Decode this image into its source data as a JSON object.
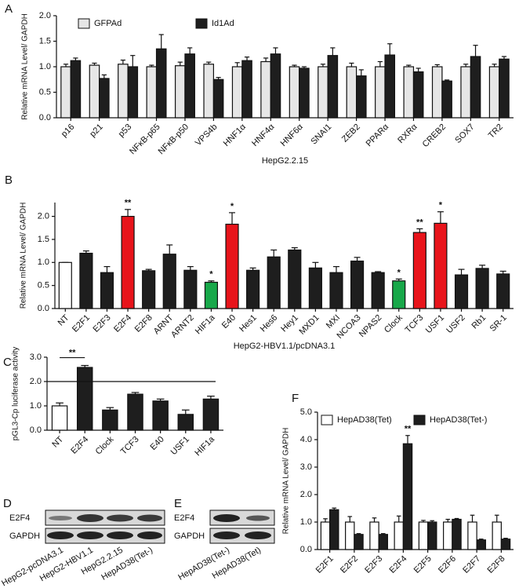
{
  "chart_data": [
    {
      "type": "bar",
      "panel": "A",
      "ylabel": "Relative mRNA Level/ GAPDH",
      "xlabel": "HepG2.2.15",
      "categories": [
        "p16",
        "p21",
        "p53",
        "NFκB-p65",
        "NFκB-p50",
        "VPS4b",
        "HNF1α",
        "HNF4α",
        "HNF6α",
        "SNAI1",
        "ZEB2",
        "PPARα",
        "RXRα",
        "CREB2",
        "SOX7",
        "TR2"
      ],
      "series": [
        {
          "name": "GFPAd",
          "color": "#e6e6e6",
          "values": [
            1.0,
            1.03,
            1.05,
            1.0,
            1.02,
            1.05,
            1.0,
            1.1,
            1.0,
            1.0,
            1.0,
            1.0,
            1.0,
            1.0,
            1.0,
            1.0
          ],
          "errors": [
            0.05,
            0.04,
            0.08,
            0.03,
            0.07,
            0.04,
            0.08,
            0.07,
            0.03,
            0.05,
            0.07,
            0.1,
            0.03,
            0.04,
            0.05,
            0.05
          ]
        },
        {
          "name": "Id1Ad",
          "color": "#1e1e1e",
          "values": [
            1.12,
            0.77,
            1.0,
            1.35,
            1.25,
            0.75,
            1.12,
            1.25,
            0.97,
            1.22,
            0.82,
            1.23,
            0.9,
            0.72,
            1.2,
            1.15
          ],
          "errors": [
            0.05,
            0.07,
            0.22,
            0.28,
            0.12,
            0.04,
            0.07,
            0.12,
            0.03,
            0.15,
            0.12,
            0.22,
            0.07,
            0.02,
            0.22,
            0.05
          ]
        }
      ],
      "ylim": [
        0,
        2.0
      ],
      "yticks": [
        {
          "value": 0,
          "label": "0.0"
        },
        0.5,
        {
          "value": 1,
          "label": "1.0"
        },
        1.5,
        {
          "value": 2,
          "label": "2.0"
        }
      ]
    },
    {
      "type": "bar",
      "panel": "B",
      "ylabel": "Relative mRNA Level/ GAPDH",
      "xlabel": "HepG2-HBV1.1/pcDNA3.1",
      "categories": [
        "NT",
        "E2F1",
        "E2F3",
        "E2F4",
        "E2F8",
        "ARNT",
        "ARNT2",
        "HIF1a",
        "E40",
        "Hes1",
        "Hes6",
        "Hey1",
        "MXD1",
        "MXI",
        "NCOA3",
        "NPAS2",
        "Clock",
        "TCF3",
        "USF1",
        "USF2",
        "Rb1",
        "SR-1"
      ],
      "values": [
        1.0,
        1.2,
        0.78,
        2.0,
        0.82,
        1.18,
        0.83,
        0.57,
        1.83,
        0.83,
        1.12,
        1.27,
        0.88,
        0.78,
        1.03,
        0.78,
        0.6,
        1.65,
        1.85,
        0.73,
        0.87,
        0.75
      ],
      "errors": [
        0,
        0.05,
        0.13,
        0.15,
        0.03,
        0.2,
        0.08,
        0.03,
        0.25,
        0.05,
        0.15,
        0.05,
        0.12,
        0.13,
        0.08,
        0.02,
        0.04,
        0.08,
        0.25,
        0.12,
        0.07,
        0.06
      ],
      "colors": [
        "#ffffff",
        "#1e1e1e",
        "#1e1e1e",
        "#e8141b",
        "#1e1e1e",
        "#1e1e1e",
        "#1e1e1e",
        "#18a84a",
        "#e8141b",
        "#1e1e1e",
        "#1e1e1e",
        "#1e1e1e",
        "#1e1e1e",
        "#1e1e1e",
        "#1e1e1e",
        "#1e1e1e",
        "#18a84a",
        "#e8141b",
        "#e8141b",
        "#1e1e1e",
        "#1e1e1e",
        "#1e1e1e"
      ],
      "annotations": [
        null,
        null,
        null,
        "**",
        null,
        null,
        null,
        "*",
        "*",
        null,
        null,
        null,
        null,
        null,
        null,
        null,
        "*",
        "**",
        "*",
        null,
        null,
        null
      ],
      "ylim": [
        0,
        2.3
      ],
      "yticks": [
        {
          "value": 0,
          "label": "0.0"
        },
        0.5,
        {
          "value": 1,
          "label": "1.0"
        },
        1.5,
        {
          "value": 2,
          "label": "2.0"
        }
      ]
    },
    {
      "type": "bar",
      "panel": "C",
      "ylabel": "pGL3-Cp luciferase activity",
      "categories": [
        "NT",
        "E2F4",
        "Clock",
        "TCF3",
        "E40",
        "USF1",
        "HIF1a"
      ],
      "values": [
        1.0,
        2.58,
        0.83,
        1.48,
        1.2,
        0.65,
        1.28
      ],
      "errors": [
        0.12,
        0.08,
        0.1,
        0.07,
        0.08,
        0.18,
        0.12
      ],
      "colors": [
        "#ffffff",
        "#1e1e1e",
        "#1e1e1e",
        "#1e1e1e",
        "#1e1e1e",
        "#1e1e1e",
        "#1e1e1e"
      ],
      "annotations": [
        null,
        "**",
        null,
        null,
        null,
        null,
        null
      ],
      "reference_line": 2.0,
      "ylim": [
        0,
        3.0
      ],
      "yticks": [
        {
          "value": 0,
          "label": "0.0"
        },
        {
          "value": 1,
          "label": "1.0"
        },
        {
          "value": 2,
          "label": "2.0"
        },
        {
          "value": 3,
          "label": "3.0"
        }
      ]
    },
    {
      "type": "bar",
      "panel": "F",
      "ylabel": "Relative mRNA Level/ GAPDH",
      "categories": [
        "E2F1",
        "E2F2",
        "E2F3",
        "E2F4",
        "E2F5",
        "E2F6",
        "E2F7",
        "E2F8"
      ],
      "series": [
        {
          "name": "HepAD38(Tet)",
          "color": "#ffffff",
          "values": [
            1.0,
            1.0,
            1.0,
            1.0,
            1.0,
            1.0,
            1.0,
            1.0
          ],
          "errors": [
            0.12,
            0.2,
            0.15,
            0.22,
            0.06,
            0.1,
            0.25,
            0.25
          ]
        },
        {
          "name": "HepAD38(Tet-)",
          "color": "#1e1e1e",
          "values": [
            1.45,
            0.55,
            0.55,
            3.85,
            1.0,
            1.1,
            0.35,
            0.38
          ],
          "errors": [
            0.06,
            0.03,
            0.03,
            0.3,
            0.05,
            0.03,
            0.03,
            0.03
          ],
          "annotations": [
            null,
            null,
            null,
            "**",
            null,
            null,
            null,
            null
          ]
        }
      ],
      "ylim": [
        0,
        5.0
      ],
      "yticks": [
        {
          "value": 0,
          "label": "0.0"
        },
        {
          "value": 1,
          "label": "1.0"
        },
        {
          "value": 2,
          "label": "2.0"
        },
        {
          "value": 3,
          "label": "3.0"
        },
        {
          "value": 4,
          "label": "4.0"
        },
        {
          "value": 5,
          "label": "5.0"
        }
      ]
    }
  ],
  "blots": [
    {
      "panel": "D",
      "bands": [
        "E2F4",
        "GAPDH"
      ],
      "lanes": [
        "HepG2-pcDNA3.1",
        "HepG2-HBV1.1",
        "HepG2.2.15",
        "HepAD38(Tet-)"
      ]
    },
    {
      "panel": "E",
      "bands": [
        "E2F4",
        "GAPDH"
      ],
      "lanes": [
        "HepAD38(Tet-)",
        "HepAD38(Tet)"
      ]
    }
  ]
}
